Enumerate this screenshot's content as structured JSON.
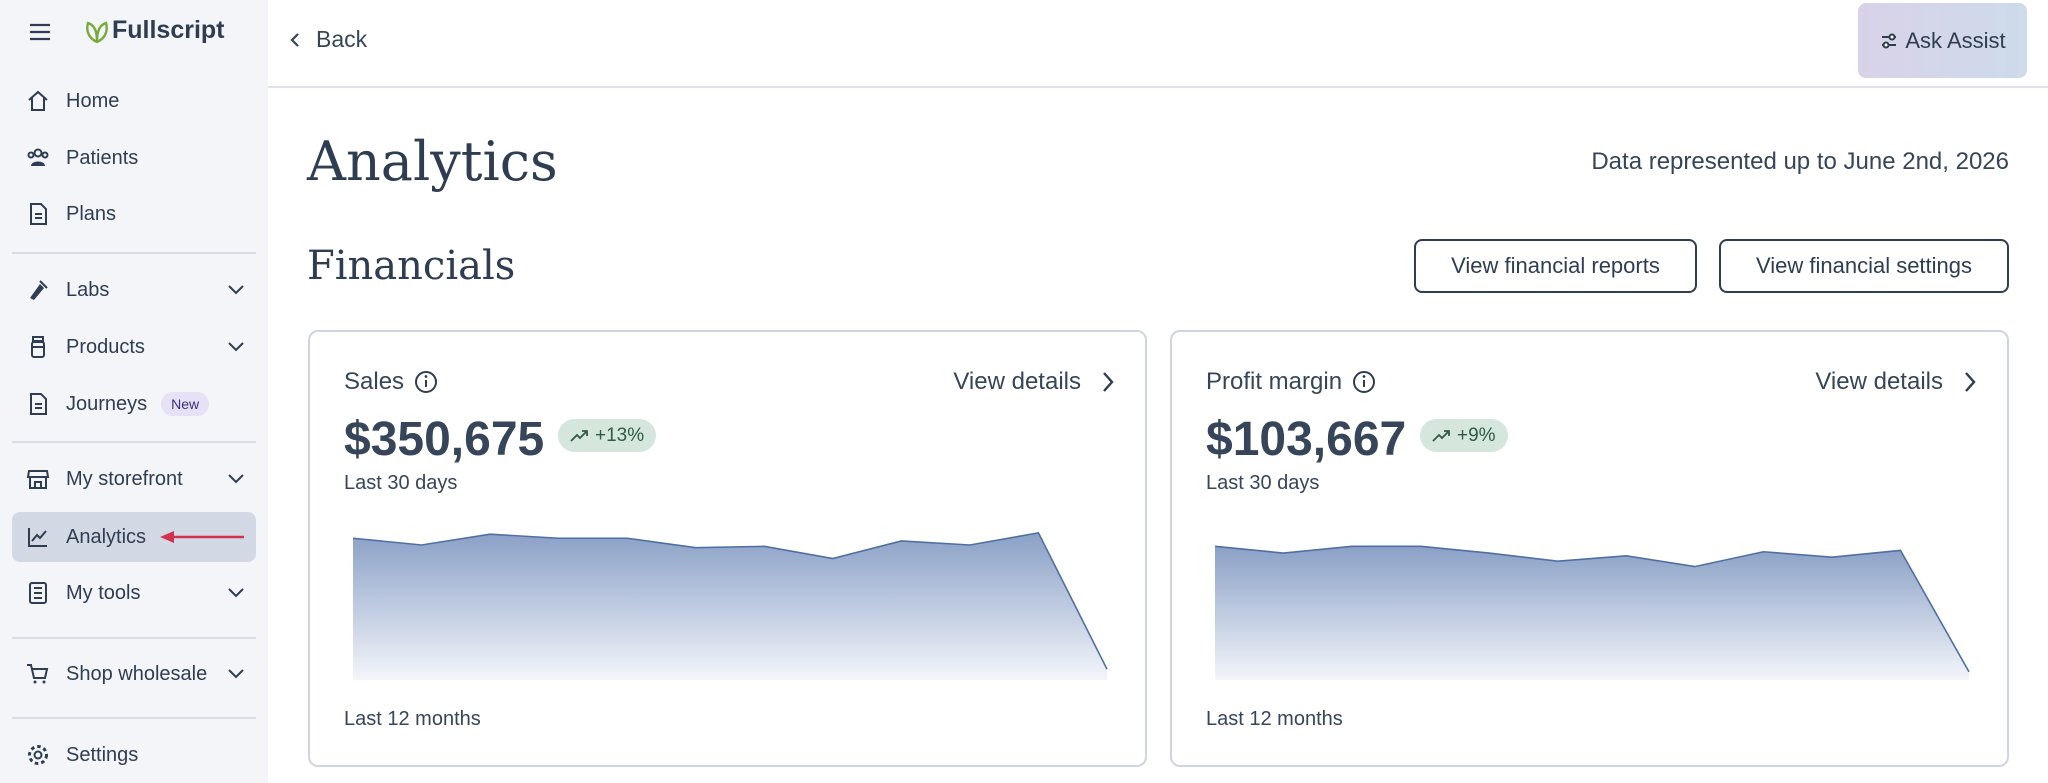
{
  "sidebar": {
    "brand": "Fullscript",
    "items": [
      {
        "label": "Home"
      },
      {
        "label": "Patients"
      },
      {
        "label": "Plans"
      },
      {
        "label": "Labs"
      },
      {
        "label": "Products"
      },
      {
        "label": "Journeys",
        "badge": "New"
      },
      {
        "label": "My storefront"
      },
      {
        "label": "Analytics"
      },
      {
        "label": "My tools"
      },
      {
        "label": "Shop wholesale"
      },
      {
        "label": "Settings"
      }
    ]
  },
  "header": {
    "back": "Back",
    "assist": "Ask Assist"
  },
  "page": {
    "title": "Analytics",
    "data_note": "Data represented up to June 2nd, 2026",
    "section": "Financials",
    "buttons": [
      "View financial reports",
      "View financial settings"
    ]
  },
  "cards": [
    {
      "label": "Sales",
      "link": "View details",
      "value": "$350,675",
      "change": "+13%",
      "period": "Last 30 days",
      "chart_period": "Last 12 months",
      "chart_data": {
        "type": "area",
        "values": [
          105,
          100,
          108,
          105,
          105,
          98,
          99,
          90,
          103,
          100,
          109,
          8
        ]
      }
    },
    {
      "label": "Profit margin",
      "link": "View details",
      "value": "$103,667",
      "change": "+9%",
      "period": "Last 30 days",
      "chart_period": "Last 12 months",
      "chart_data": {
        "type": "area",
        "values": [
          99,
          94,
          99,
          99,
          94,
          88,
          92,
          84,
          95,
          91,
          96,
          6
        ]
      }
    }
  ]
}
